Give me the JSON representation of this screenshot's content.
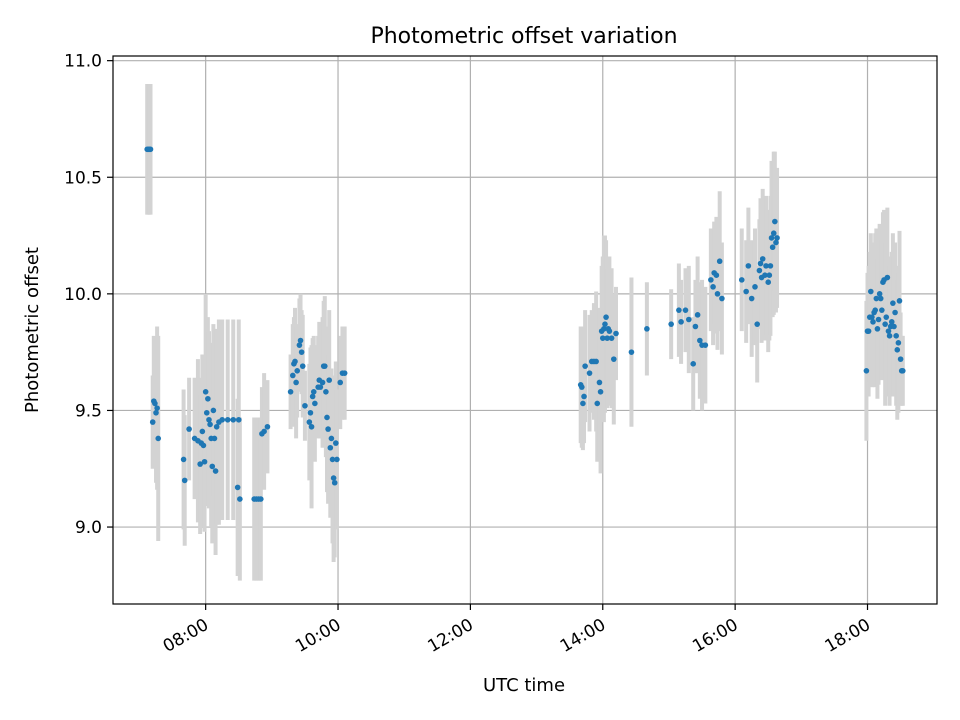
{
  "chart_data": {
    "type": "scatter",
    "title": "Photometric offset variation",
    "xlabel": "UTC time",
    "ylabel": "Photometric offset",
    "xlim_hours": [
      6.6,
      19.05
    ],
    "ylim": [
      8.67,
      11.02
    ],
    "x_ticks": [
      {
        "hour": 8,
        "label": "08:00"
      },
      {
        "hour": 10,
        "label": "10:00"
      },
      {
        "hour": 12,
        "label": "12:00"
      },
      {
        "hour": 14,
        "label": "14:00"
      },
      {
        "hour": 16,
        "label": "16:00"
      },
      {
        "hour": 18,
        "label": "18:00"
      }
    ],
    "y_ticks": [
      {
        "value": 9.0,
        "label": "9.0"
      },
      {
        "value": 9.5,
        "label": "9.5"
      },
      {
        "value": 10.0,
        "label": "10.0"
      },
      {
        "value": 10.5,
        "label": "10.5"
      },
      {
        "value": 11.0,
        "label": "11.0"
      }
    ],
    "grid": true,
    "point_color": "#1f77b4",
    "errorbar_color": "#d3d3d3",
    "points": [
      {
        "t": "07:07",
        "y": 10.62,
        "err": 0.28
      },
      {
        "t": "07:08",
        "y": 10.62,
        "err": 0.28
      },
      {
        "t": "07:09",
        "y": 10.62,
        "err": 0.28
      },
      {
        "t": "07:10",
        "y": 10.62,
        "err": 0.28
      },
      {
        "t": "07:12",
        "y": 9.45,
        "err": 0.2
      },
      {
        "t": "07:13",
        "y": 9.54,
        "err": 0.28
      },
      {
        "t": "07:14",
        "y": 9.53,
        "err": 0.25
      },
      {
        "t": "07:15",
        "y": 9.49,
        "err": 0.3
      },
      {
        "t": "07:16",
        "y": 9.51,
        "err": 0.35
      },
      {
        "t": "07:17",
        "y": 9.38,
        "err": 0.44
      },
      {
        "t": "07:40",
        "y": 9.29,
        "err": 0.3
      },
      {
        "t": "07:41",
        "y": 9.2,
        "err": 0.28
      },
      {
        "t": "07:45",
        "y": 9.42,
        "err": 0.22
      },
      {
        "t": "07:50",
        "y": 9.38,
        "err": 0.26
      },
      {
        "t": "07:53",
        "y": 9.37,
        "err": 0.35
      },
      {
        "t": "07:55",
        "y": 9.27,
        "err": 0.3
      },
      {
        "t": "07:56",
        "y": 9.36,
        "err": 0.28
      },
      {
        "t": "07:57",
        "y": 9.41,
        "err": 0.33
      },
      {
        "t": "07:58",
        "y": 9.35,
        "err": 0.35
      },
      {
        "t": "07:59",
        "y": 9.28,
        "err": 0.3
      },
      {
        "t": "08:00",
        "y": 9.58,
        "err": 0.42
      },
      {
        "t": "08:01",
        "y": 9.49,
        "err": 0.4
      },
      {
        "t": "08:02",
        "y": 9.55,
        "err": 0.35
      },
      {
        "t": "08:03",
        "y": 9.46,
        "err": 0.38
      },
      {
        "t": "08:04",
        "y": 9.44,
        "err": 0.35
      },
      {
        "t": "08:05",
        "y": 9.38,
        "err": 0.38
      },
      {
        "t": "08:06",
        "y": 9.26,
        "err": 0.33
      },
      {
        "t": "08:07",
        "y": 9.5,
        "err": 0.37
      },
      {
        "t": "08:08",
        "y": 9.38,
        "err": 0.4
      },
      {
        "t": "08:09",
        "y": 9.24,
        "err": 0.36
      },
      {
        "t": "08:10",
        "y": 9.43,
        "err": 0.42
      },
      {
        "t": "08:12",
        "y": 9.45,
        "err": 0.44
      },
      {
        "t": "08:15",
        "y": 9.46,
        "err": 0.43
      },
      {
        "t": "08:20",
        "y": 9.46,
        "err": 0.43
      },
      {
        "t": "08:25",
        "y": 9.46,
        "err": 0.43
      },
      {
        "t": "08:30",
        "y": 9.46,
        "err": 0.43
      },
      {
        "t": "08:29",
        "y": 9.17,
        "err": 0.38
      },
      {
        "t": "08:31",
        "y": 9.12,
        "err": 0.35
      },
      {
        "t": "08:44",
        "y": 9.12,
        "err": 0.35
      },
      {
        "t": "08:46",
        "y": 9.12,
        "err": 0.35
      },
      {
        "t": "08:48",
        "y": 9.12,
        "err": 0.35
      },
      {
        "t": "08:50",
        "y": 9.12,
        "err": 0.35
      },
      {
        "t": "08:51",
        "y": 9.4,
        "err": 0.2
      },
      {
        "t": "08:53",
        "y": 9.41,
        "err": 0.25
      },
      {
        "t": "08:56",
        "y": 9.43,
        "err": 0.2
      },
      {
        "t": "09:17",
        "y": 9.58,
        "err": 0.16
      },
      {
        "t": "09:19",
        "y": 9.65,
        "err": 0.22
      },
      {
        "t": "09:20",
        "y": 9.7,
        "err": 0.2
      },
      {
        "t": "09:21",
        "y": 9.71,
        "err": 0.23
      },
      {
        "t": "09:22",
        "y": 9.62,
        "err": 0.24
      },
      {
        "t": "09:23",
        "y": 9.67,
        "err": 0.2
      },
      {
        "t": "09:25",
        "y": 9.78,
        "err": 0.2
      },
      {
        "t": "09:26",
        "y": 9.8,
        "err": 0.2
      },
      {
        "t": "09:27",
        "y": 9.75,
        "err": 0.18
      },
      {
        "t": "09:28",
        "y": 9.69,
        "err": 0.22
      },
      {
        "t": "09:30",
        "y": 9.52,
        "err": 0.15
      },
      {
        "t": "09:34",
        "y": 9.45,
        "err": 0.25
      },
      {
        "t": "09:35",
        "y": 9.49,
        "err": 0.28
      },
      {
        "t": "09:36",
        "y": 9.43,
        "err": 0.35
      },
      {
        "t": "09:37",
        "y": 9.56,
        "err": 0.25
      },
      {
        "t": "09:38",
        "y": 9.58,
        "err": 0.24
      },
      {
        "t": "09:39",
        "y": 9.53,
        "err": 0.25
      },
      {
        "t": "09:42",
        "y": 9.6,
        "err": 0.22
      },
      {
        "t": "09:43",
        "y": 9.63,
        "err": 0.25
      },
      {
        "t": "09:44",
        "y": 9.6,
        "err": 0.22
      },
      {
        "t": "09:46",
        "y": 9.62,
        "err": 0.28
      },
      {
        "t": "09:47",
        "y": 9.69,
        "err": 0.28
      },
      {
        "t": "09:48",
        "y": 9.69,
        "err": 0.3
      },
      {
        "t": "09:49",
        "y": 9.58,
        "err": 0.28
      },
      {
        "t": "09:50",
        "y": 9.47,
        "err": 0.32
      },
      {
        "t": "09:51",
        "y": 9.42,
        "err": 0.32
      },
      {
        "t": "09:52",
        "y": 9.63,
        "err": 0.3
      },
      {
        "t": "09:53",
        "y": 9.34,
        "err": 0.3
      },
      {
        "t": "09:54",
        "y": 9.38,
        "err": 0.3
      },
      {
        "t": "09:55",
        "y": 9.29,
        "err": 0.36
      },
      {
        "t": "09:56",
        "y": 9.21,
        "err": 0.36
      },
      {
        "t": "09:57",
        "y": 9.19,
        "err": 0.32
      },
      {
        "t": "09:58",
        "y": 9.36,
        "err": 0.35
      },
      {
        "t": "09:59",
        "y": 9.29,
        "err": 0.3
      },
      {
        "t": "10:02",
        "y": 9.62,
        "err": 0.2
      },
      {
        "t": "10:04",
        "y": 9.66,
        "err": 0.2
      },
      {
        "t": "10:06",
        "y": 9.66,
        "err": 0.2
      },
      {
        "t": "13:40",
        "y": 9.61,
        "err": 0.25
      },
      {
        "t": "13:41",
        "y": 9.6,
        "err": 0.26
      },
      {
        "t": "13:42",
        "y": 9.53,
        "err": 0.2
      },
      {
        "t": "13:43",
        "y": 9.56,
        "err": 0.2
      },
      {
        "t": "13:44",
        "y": 9.69,
        "err": 0.24
      },
      {
        "t": "13:48",
        "y": 9.66,
        "err": 0.25
      },
      {
        "t": "13:50",
        "y": 9.71,
        "err": 0.22
      },
      {
        "t": "13:52",
        "y": 9.71,
        "err": 0.25
      },
      {
        "t": "13:54",
        "y": 9.71,
        "err": 0.3
      },
      {
        "t": "13:55",
        "y": 9.53,
        "err": 0.25
      },
      {
        "t": "13:57",
        "y": 9.62,
        "err": 0.32
      },
      {
        "t": "13:58",
        "y": 9.58,
        "err": 0.35
      },
      {
        "t": "13:59",
        "y": 9.84,
        "err": 0.28
      },
      {
        "t": "14:00",
        "y": 9.81,
        "err": 0.35
      },
      {
        "t": "14:01",
        "y": 9.85,
        "err": 0.4
      },
      {
        "t": "14:02",
        "y": 9.87,
        "err": 0.38
      },
      {
        "t": "14:03",
        "y": 9.9,
        "err": 0.33
      },
      {
        "t": "14:04",
        "y": 9.81,
        "err": 0.3
      },
      {
        "t": "14:05",
        "y": 9.85,
        "err": 0.3
      },
      {
        "t": "14:06",
        "y": 9.84,
        "err": 0.32
      },
      {
        "t": "14:08",
        "y": 9.81,
        "err": 0.3
      },
      {
        "t": "14:10",
        "y": 9.72,
        "err": 0.28
      },
      {
        "t": "14:12",
        "y": 9.83,
        "err": 0.2
      },
      {
        "t": "14:26",
        "y": 9.75,
        "err": 0.32
      },
      {
        "t": "14:40",
        "y": 9.85,
        "err": 0.2
      },
      {
        "t": "15:02",
        "y": 9.87,
        "err": 0.15
      },
      {
        "t": "15:09",
        "y": 9.93,
        "err": 0.2
      },
      {
        "t": "15:11",
        "y": 9.88,
        "err": 0.18
      },
      {
        "t": "15:15",
        "y": 9.93,
        "err": 0.18
      },
      {
        "t": "15:18",
        "y": 9.89,
        "err": 0.23
      },
      {
        "t": "15:22",
        "y": 9.7,
        "err": 0.2
      },
      {
        "t": "15:24",
        "y": 9.86,
        "err": 0.2
      },
      {
        "t": "15:26",
        "y": 9.91,
        "err": 0.25
      },
      {
        "t": "15:28",
        "y": 9.8,
        "err": 0.25
      },
      {
        "t": "15:30",
        "y": 9.78,
        "err": 0.28
      },
      {
        "t": "15:33",
        "y": 9.78,
        "err": 0.25
      },
      {
        "t": "15:38",
        "y": 10.06,
        "err": 0.22
      },
      {
        "t": "15:40",
        "y": 10.03,
        "err": 0.25
      },
      {
        "t": "15:41",
        "y": 10.09,
        "err": 0.22
      },
      {
        "t": "15:43",
        "y": 10.08,
        "err": 0.25
      },
      {
        "t": "15:44",
        "y": 10.0,
        "err": 0.24
      },
      {
        "t": "15:46",
        "y": 10.14,
        "err": 0.3
      },
      {
        "t": "15:48",
        "y": 9.98,
        "err": 0.24
      },
      {
        "t": "16:06",
        "y": 10.06,
        "err": 0.22
      },
      {
        "t": "16:10",
        "y": 10.01,
        "err": 0.22
      },
      {
        "t": "16:12",
        "y": 10.12,
        "err": 0.25
      },
      {
        "t": "16:15",
        "y": 9.98,
        "err": 0.25
      },
      {
        "t": "16:18",
        "y": 10.03,
        "err": 0.25
      },
      {
        "t": "16:20",
        "y": 9.87,
        "err": 0.25
      },
      {
        "t": "16:22",
        "y": 10.1,
        "err": 0.22
      },
      {
        "t": "16:23",
        "y": 10.13,
        "err": 0.28
      },
      {
        "t": "16:24",
        "y": 10.07,
        "err": 0.28
      },
      {
        "t": "16:25",
        "y": 10.15,
        "err": 0.3
      },
      {
        "t": "16:27",
        "y": 10.08,
        "err": 0.28
      },
      {
        "t": "16:28",
        "y": 10.12,
        "err": 0.3
      },
      {
        "t": "16:30",
        "y": 10.05,
        "err": 0.3
      },
      {
        "t": "16:31",
        "y": 10.08,
        "err": 0.28
      },
      {
        "t": "16:32",
        "y": 10.12,
        "err": 0.3
      },
      {
        "t": "16:33",
        "y": 10.24,
        "err": 0.33
      },
      {
        "t": "16:34",
        "y": 10.2,
        "err": 0.3
      },
      {
        "t": "16:35",
        "y": 10.26,
        "err": 0.35
      },
      {
        "t": "16:36",
        "y": 10.31,
        "err": 0.3
      },
      {
        "t": "16:37",
        "y": 10.22,
        "err": 0.3
      },
      {
        "t": "16:38",
        "y": 10.24,
        "err": 0.3
      },
      {
        "t": "17:59",
        "y": 9.67,
        "err": 0.3
      },
      {
        "t": "18:00",
        "y": 9.84,
        "err": 0.25
      },
      {
        "t": "18:01",
        "y": 9.84,
        "err": 0.28
      },
      {
        "t": "18:02",
        "y": 9.9,
        "err": 0.28
      },
      {
        "t": "18:03",
        "y": 10.01,
        "err": 0.25
      },
      {
        "t": "18:04",
        "y": 9.9,
        "err": 0.3
      },
      {
        "t": "18:05",
        "y": 9.88,
        "err": 0.28
      },
      {
        "t": "18:06",
        "y": 9.92,
        "err": 0.3
      },
      {
        "t": "18:07",
        "y": 9.93,
        "err": 0.33
      },
      {
        "t": "18:08",
        "y": 9.98,
        "err": 0.3
      },
      {
        "t": "18:09",
        "y": 9.85,
        "err": 0.3
      },
      {
        "t": "18:10",
        "y": 9.89,
        "err": 0.28
      },
      {
        "t": "18:11",
        "y": 10.0,
        "err": 0.3
      },
      {
        "t": "18:12",
        "y": 9.98,
        "err": 0.3
      },
      {
        "t": "18:13",
        "y": 9.93,
        "err": 0.3
      },
      {
        "t": "18:14",
        "y": 10.05,
        "err": 0.3
      },
      {
        "t": "18:15",
        "y": 10.06,
        "err": 0.3
      },
      {
        "t": "18:16",
        "y": 9.87,
        "err": 0.35
      },
      {
        "t": "18:17",
        "y": 9.9,
        "err": 0.3
      },
      {
        "t": "18:18",
        "y": 10.07,
        "err": 0.3
      },
      {
        "t": "18:19",
        "y": 9.84,
        "err": 0.28
      },
      {
        "t": "18:20",
        "y": 9.82,
        "err": 0.3
      },
      {
        "t": "18:21",
        "y": 9.86,
        "err": 0.3
      },
      {
        "t": "18:22",
        "y": 9.88,
        "err": 0.3
      },
      {
        "t": "18:23",
        "y": 9.96,
        "err": 0.3
      },
      {
        "t": "18:24",
        "y": 9.86,
        "err": 0.3
      },
      {
        "t": "18:25",
        "y": 9.92,
        "err": 0.3
      },
      {
        "t": "18:26",
        "y": 9.82,
        "err": 0.3
      },
      {
        "t": "18:27",
        "y": 9.76,
        "err": 0.3
      },
      {
        "t": "18:28",
        "y": 9.79,
        "err": 0.3
      },
      {
        "t": "18:29",
        "y": 9.97,
        "err": 0.3
      },
      {
        "t": "18:30",
        "y": 9.72,
        "err": 0.2
      },
      {
        "t": "18:31",
        "y": 9.67,
        "err": 0.15
      },
      {
        "t": "18:32",
        "y": 9.67,
        "err": 0.15
      }
    ]
  }
}
